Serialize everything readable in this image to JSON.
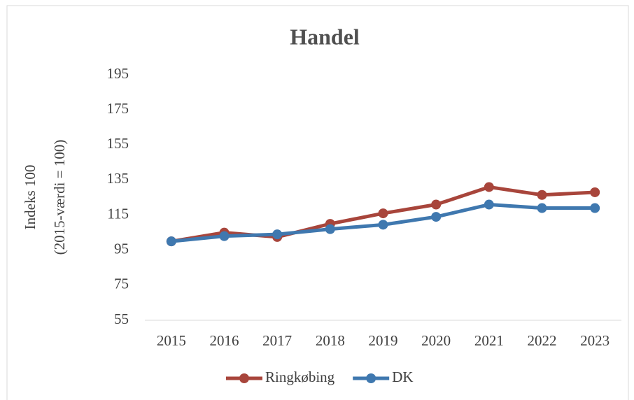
{
  "chart_data": {
    "type": "line",
    "title": "Handel",
    "y_label": [
      "Indeks 100",
      "(2015-værdi = 100)"
    ],
    "categories": [
      "2015",
      "2016",
      "2017",
      "2018",
      "2019",
      "2020",
      "2021",
      "2022",
      "2023"
    ],
    "series": [
      {
        "name": "Ringkøbing",
        "color": "#a8453b",
        "values": [
          100,
          105,
          102.5,
          110,
          116,
          121,
          131,
          126.5,
          128
        ]
      },
      {
        "name": "DK",
        "color": "#3f78af",
        "values": [
          100,
          103,
          104,
          107,
          109.5,
          114,
          121,
          119,
          119
        ]
      }
    ],
    "ylim": [
      55,
      195
    ],
    "yticks": [
      55,
      75,
      95,
      115,
      135,
      155,
      175,
      195
    ],
    "grid": false,
    "legend": "bottom"
  }
}
